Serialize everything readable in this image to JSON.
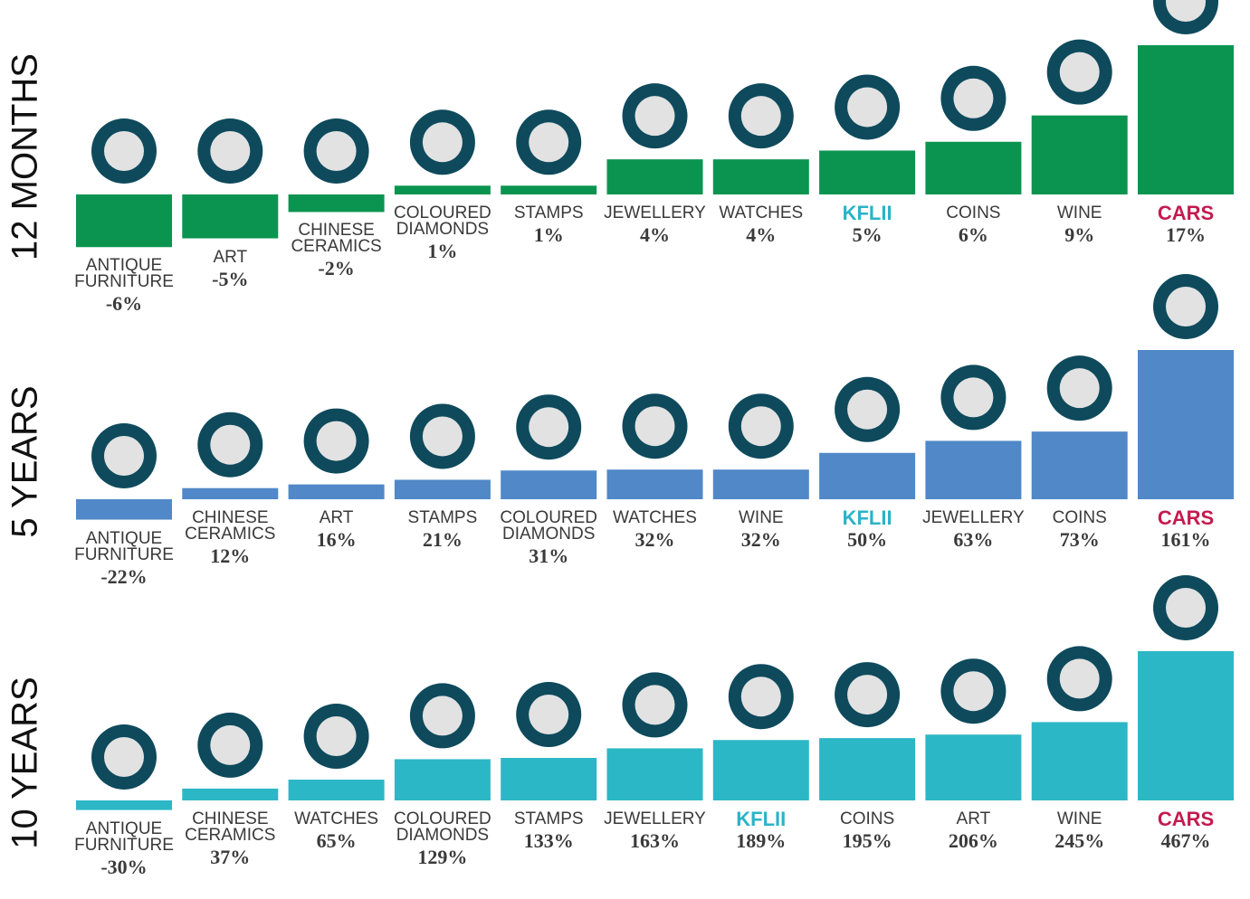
{
  "chart_data": [
    {
      "type": "bar",
      "title": "12 MONTHS",
      "color": "#0a9450",
      "categories": [
        "ANTIQUE FURNITURE",
        "ART",
        "CHINESE CERAMICS",
        "COLOURED DIAMONDS",
        "STAMPS",
        "JEWELLERY",
        "WATCHES",
        "KFLII",
        "COINS",
        "WINE",
        "CARS"
      ],
      "values": [
        -6,
        -5,
        -2,
        1,
        1,
        4,
        4,
        5,
        6,
        9,
        17
      ],
      "value_labels": [
        "-6%",
        "-5%",
        "-2%",
        "1%",
        "1%",
        "4%",
        "4%",
        "5%",
        "6%",
        "9%",
        "17%"
      ],
      "label_colors": {
        "KFLII": "#2ab3c8",
        "CARS": "#c41a50"
      }
    },
    {
      "type": "bar",
      "title": "5 YEARS",
      "color": "#5088c8",
      "categories": [
        "ANTIQUE FURNITURE",
        "CHINESE CERAMICS",
        "ART",
        "STAMPS",
        "COLOURED DIAMONDS",
        "WATCHES",
        "WINE",
        "KFLII",
        "JEWELLERY",
        "COINS",
        "CARS"
      ],
      "values": [
        -22,
        12,
        16,
        21,
        31,
        32,
        32,
        50,
        63,
        73,
        161
      ],
      "value_labels": [
        "-22%",
        "12%",
        "16%",
        "21%",
        "31%",
        "32%",
        "32%",
        "50%",
        "63%",
        "73%",
        "161%"
      ],
      "label_colors": {
        "KFLII": "#2ab3c8",
        "CARS": "#c41a50"
      }
    },
    {
      "type": "bar",
      "title": "10 YEARS",
      "color": "#2cb7c6",
      "categories": [
        "ANTIQUE FURNITURE",
        "CHINESE CERAMICS",
        "WATCHES",
        "COLOURED DIAMONDS",
        "STAMPS",
        "JEWELLERY",
        "KFLII",
        "COINS",
        "ART",
        "WINE",
        "CARS"
      ],
      "values": [
        -30,
        37,
        65,
        129,
        133,
        163,
        189,
        195,
        206,
        245,
        467
      ],
      "value_labels": [
        "-30%",
        "37%",
        "65%",
        "129%",
        "133%",
        "163%",
        "189%",
        "195%",
        "206%",
        "245%",
        "467%"
      ],
      "label_colors": {
        "KFLII": "#2ab3c8",
        "CARS": "#c41a50"
      }
    }
  ]
}
